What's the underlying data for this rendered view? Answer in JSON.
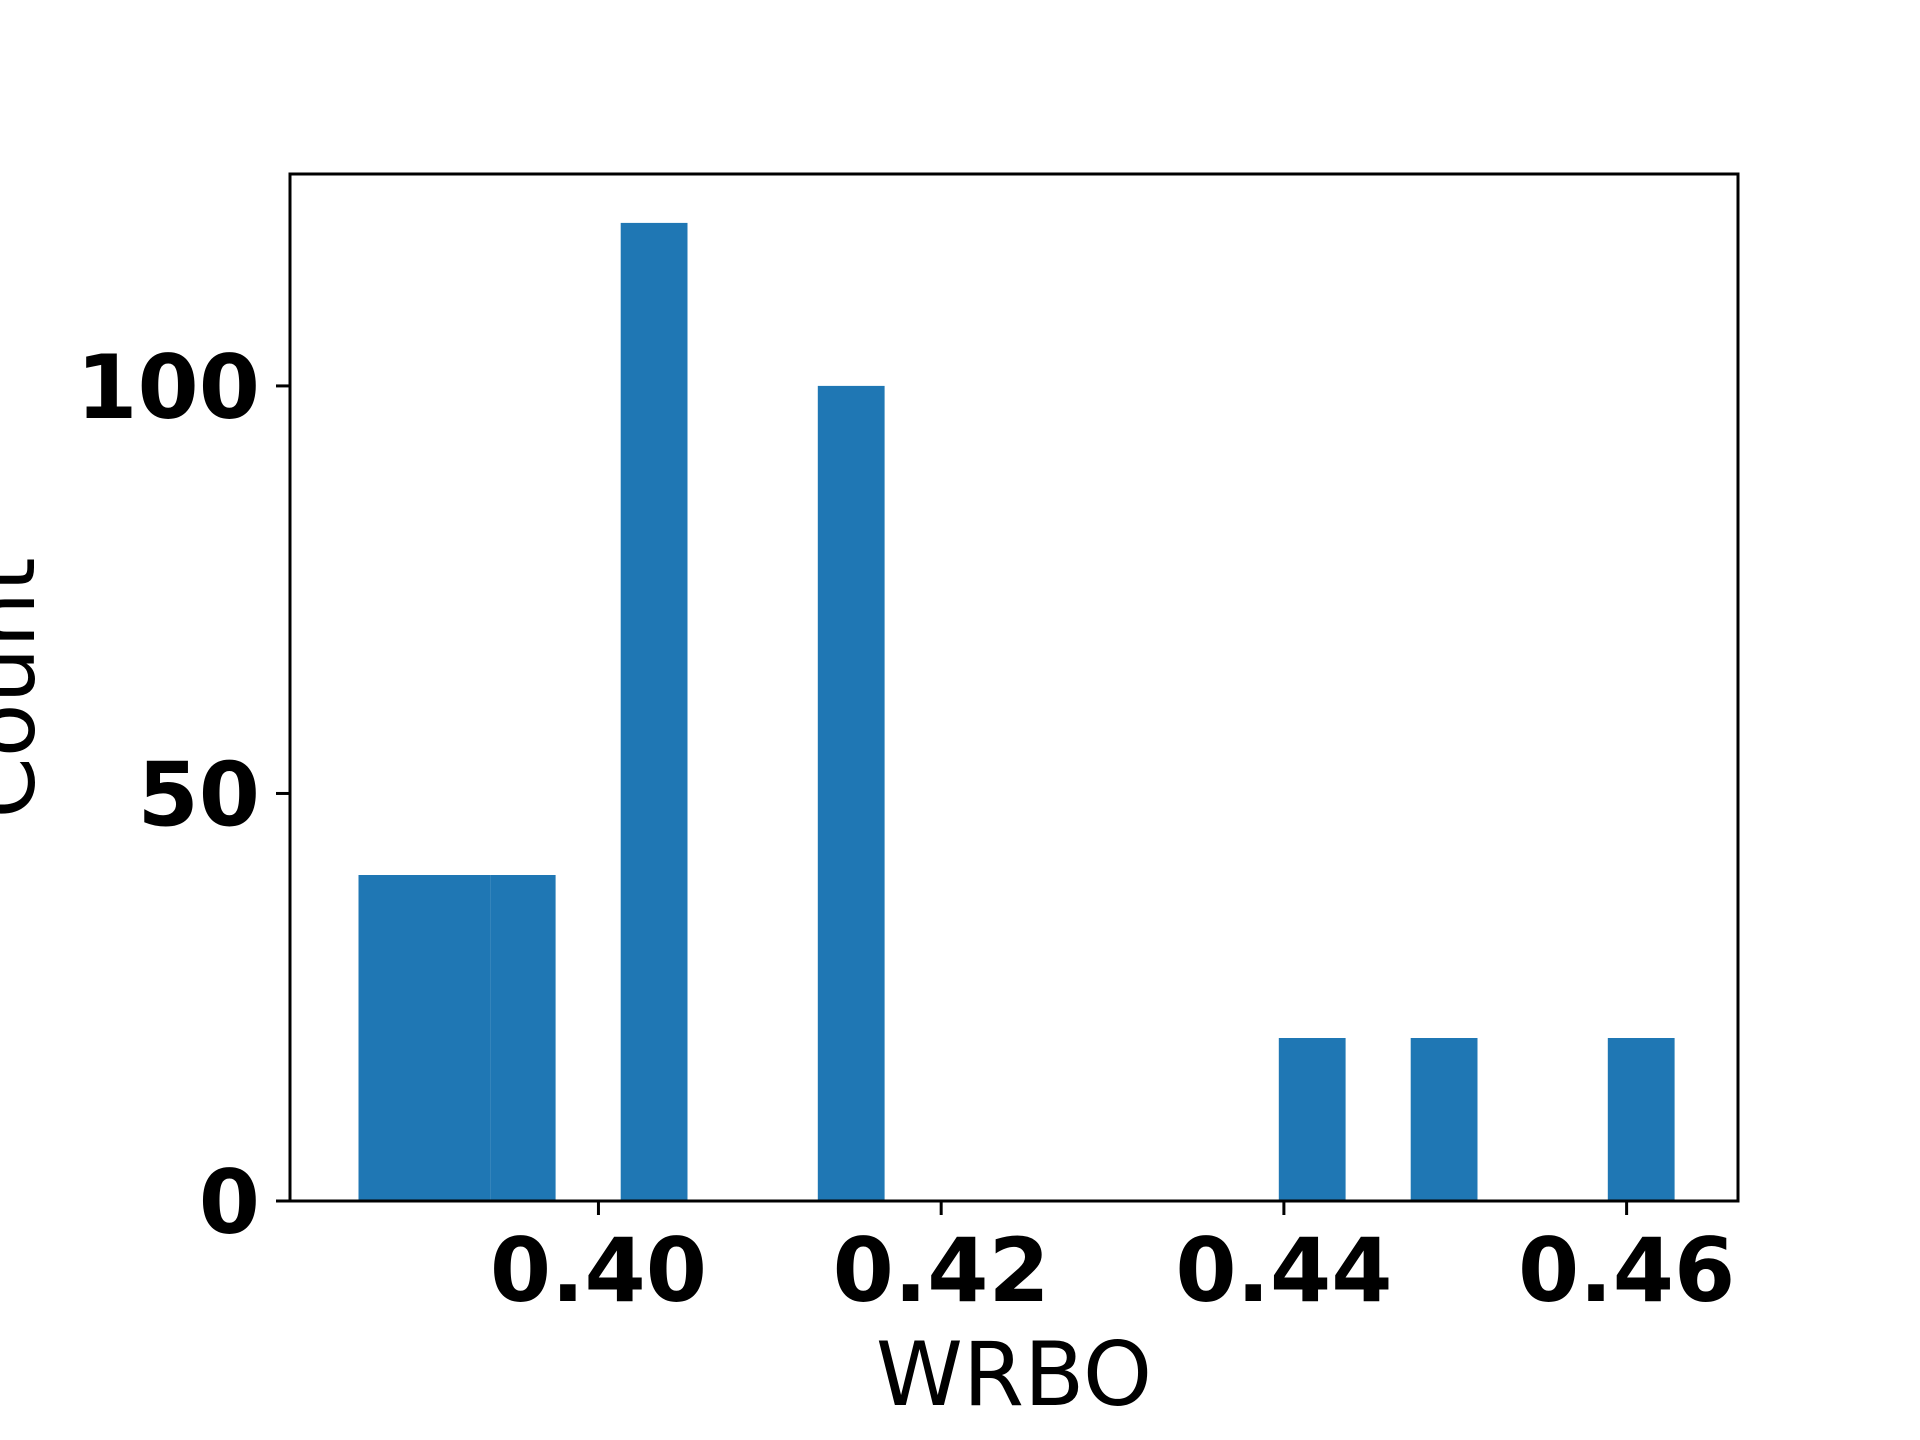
{
  "chart_data": {
    "type": "bar",
    "title": "",
    "xlabel": "WRBO",
    "ylabel": "Count",
    "bars": [
      {
        "x_start": 0.386,
        "x_end": 0.3937,
        "value": 40
      },
      {
        "x_start": 0.3937,
        "x_end": 0.3975,
        "value": 40
      },
      {
        "x_start": 0.4013,
        "x_end": 0.4052,
        "value": 120
      },
      {
        "x_start": 0.4128,
        "x_end": 0.4167,
        "value": 100
      },
      {
        "x_start": 0.4397,
        "x_end": 0.4436,
        "value": 20
      },
      {
        "x_start": 0.4474,
        "x_end": 0.4513,
        "value": 20
      },
      {
        "x_start": 0.4589,
        "x_end": 0.4628,
        "value": 20
      }
    ],
    "xlim": [
      0.382,
      0.4665
    ],
    "ylim": [
      0,
      126
    ],
    "x_ticks": [
      {
        "value": 0.4,
        "label": "0.40"
      },
      {
        "value": 0.42,
        "label": "0.42"
      },
      {
        "value": 0.44,
        "label": "0.44"
      },
      {
        "value": 0.46,
        "label": "0.46"
      }
    ],
    "y_ticks": [
      {
        "value": 0,
        "label": "0"
      },
      {
        "value": 50,
        "label": "50"
      },
      {
        "value": 100,
        "label": "100"
      }
    ],
    "grid": false,
    "legend": "none",
    "bar_color": "#1f77b4"
  }
}
